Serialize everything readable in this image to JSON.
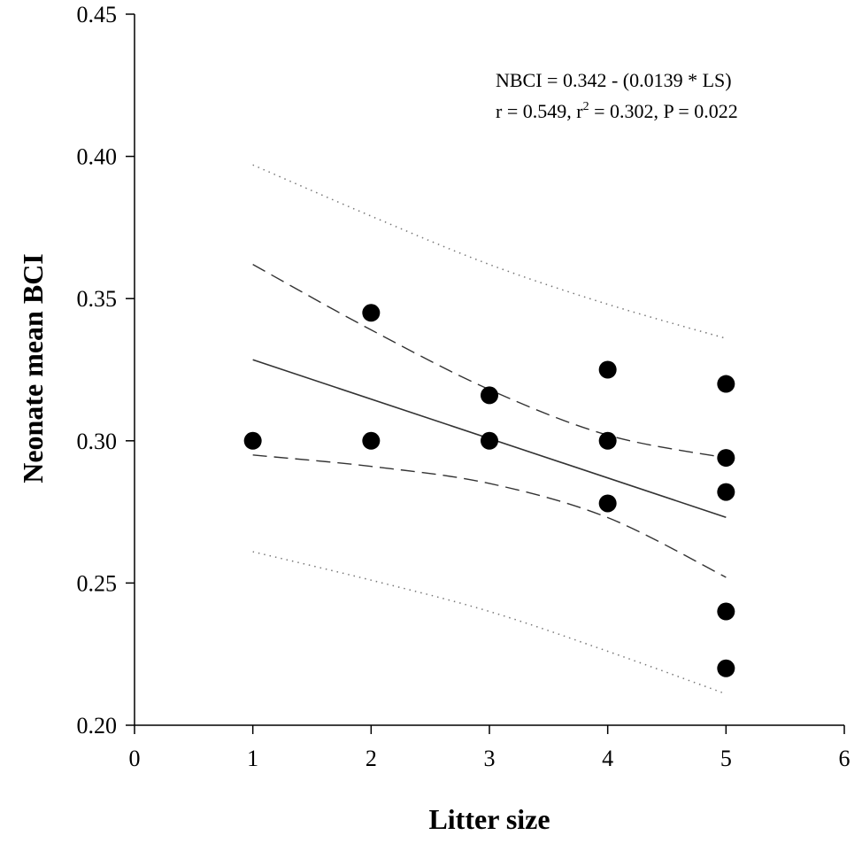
{
  "chart_data": {
    "type": "scatter",
    "title": "",
    "xlabel": "Litter size",
    "ylabel": "Neonate mean BCI",
    "xlim": [
      0,
      6
    ],
    "ylim": [
      0.2,
      0.45
    ],
    "xticks": [
      0,
      1,
      2,
      3,
      4,
      5,
      6
    ],
    "xtick_labels": [
      "0",
      "1",
      "2",
      "3",
      "4",
      "5",
      "6"
    ],
    "yticks": [
      0.2,
      0.25,
      0.3,
      0.35,
      0.4,
      0.45
    ],
    "ytick_labels": [
      "0.20",
      "0.25",
      "0.30",
      "0.35",
      "0.40",
      "0.45"
    ],
    "grid": false,
    "points": [
      {
        "x": 1,
        "y": 0.3
      },
      {
        "x": 2,
        "y": 0.345
      },
      {
        "x": 2,
        "y": 0.3
      },
      {
        "x": 3,
        "y": 0.316
      },
      {
        "x": 3,
        "y": 0.3
      },
      {
        "x": 4,
        "y": 0.325
      },
      {
        "x": 4,
        "y": 0.3
      },
      {
        "x": 4,
        "y": 0.278
      },
      {
        "x": 5,
        "y": 0.32
      },
      {
        "x": 5,
        "y": 0.294
      },
      {
        "x": 5,
        "y": 0.282
      },
      {
        "x": 5,
        "y": 0.24
      },
      {
        "x": 5,
        "y": 0.22
      }
    ],
    "regression_line": {
      "x": [
        1,
        5
      ],
      "y": [
        0.3285,
        0.2731
      ]
    },
    "confidence_band": {
      "upper": [
        {
          "x": 1,
          "y": 0.362
        },
        {
          "x": 2,
          "y": 0.339
        },
        {
          "x": 3,
          "y": 0.318
        },
        {
          "x": 4,
          "y": 0.302
        },
        {
          "x": 5,
          "y": 0.294
        }
      ],
      "lower": [
        {
          "x": 1,
          "y": 0.295
        },
        {
          "x": 2,
          "y": 0.291
        },
        {
          "x": 3,
          "y": 0.285
        },
        {
          "x": 4,
          "y": 0.273
        },
        {
          "x": 5,
          "y": 0.252
        }
      ]
    },
    "prediction_band": {
      "upper": [
        {
          "x": 1,
          "y": 0.397
        },
        {
          "x": 2,
          "y": 0.379
        },
        {
          "x": 3,
          "y": 0.362
        },
        {
          "x": 4,
          "y": 0.348
        },
        {
          "x": 5,
          "y": 0.336
        }
      ],
      "lower": [
        {
          "x": 1,
          "y": 0.261
        },
        {
          "x": 2,
          "y": 0.251
        },
        {
          "x": 3,
          "y": 0.24
        },
        {
          "x": 4,
          "y": 0.226
        },
        {
          "x": 5,
          "y": 0.211
        }
      ]
    },
    "annotation": {
      "equation": "NBCI = 0.342 - (0.0139 * LS)",
      "stats_part1": "r = 0.549, r",
      "stats_sup": "2",
      "stats_part2": " = 0.302, P = 0.022"
    }
  }
}
